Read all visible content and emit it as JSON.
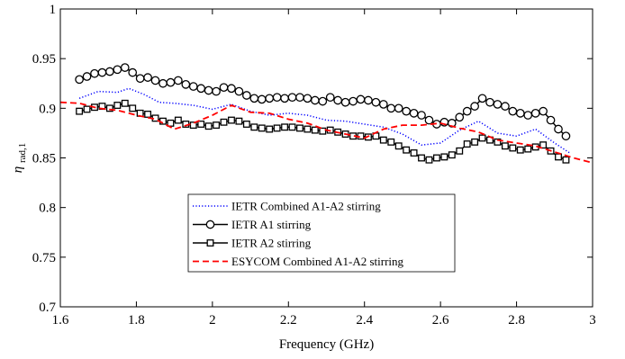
{
  "chart_data": {
    "type": "line",
    "xlabel": "Frequency (GHz)",
    "ylabel_main": "η",
    "ylabel_sub": "rad,1",
    "xlim": [
      1.6,
      3.0
    ],
    "ylim": [
      0.7,
      1.0
    ],
    "xticks": [
      "1.6",
      "1.8",
      "2",
      "2.2",
      "2.4",
      "2.6",
      "2.8",
      "3"
    ],
    "yticks": [
      "0.7",
      "0.75",
      "0.8",
      "0.85",
      "0.9",
      "0.95",
      "1"
    ],
    "grid": false,
    "legend_position": "bottom-center",
    "series": [
      {
        "name": "IETR Combined A1-A2 stirring",
        "color": "#0000ff",
        "style": "dotted",
        "marker": "none",
        "x": [
          1.65,
          1.7,
          1.75,
          1.78,
          1.82,
          1.86,
          1.9,
          1.95,
          2.0,
          2.05,
          2.1,
          2.15,
          2.2,
          2.25,
          2.3,
          2.35,
          2.4,
          2.45,
          2.5,
          2.55,
          2.6,
          2.65,
          2.7,
          2.75,
          2.8,
          2.85,
          2.9,
          2.94
        ],
        "y": [
          0.91,
          0.917,
          0.916,
          0.92,
          0.914,
          0.906,
          0.905,
          0.903,
          0.899,
          0.904,
          0.897,
          0.893,
          0.895,
          0.893,
          0.888,
          0.887,
          0.884,
          0.881,
          0.874,
          0.863,
          0.865,
          0.878,
          0.887,
          0.875,
          0.872,
          0.879,
          0.865,
          0.855
        ]
      },
      {
        "name": "IETR A1 stirring",
        "color": "#000000",
        "style": "solid",
        "marker": "circle",
        "x": [
          1.65,
          1.67,
          1.69,
          1.71,
          1.73,
          1.75,
          1.77,
          1.79,
          1.81,
          1.83,
          1.85,
          1.87,
          1.89,
          1.91,
          1.93,
          1.95,
          1.97,
          1.99,
          2.01,
          2.03,
          2.05,
          2.07,
          2.09,
          2.11,
          2.13,
          2.15,
          2.17,
          2.19,
          2.21,
          2.23,
          2.25,
          2.27,
          2.29,
          2.31,
          2.33,
          2.35,
          2.37,
          2.39,
          2.41,
          2.43,
          2.45,
          2.47,
          2.49,
          2.51,
          2.53,
          2.55,
          2.57,
          2.59,
          2.61,
          2.63,
          2.65,
          2.67,
          2.69,
          2.71,
          2.73,
          2.75,
          2.77,
          2.79,
          2.81,
          2.83,
          2.85,
          2.87,
          2.89,
          2.91,
          2.93
        ],
        "y": [
          0.929,
          0.932,
          0.935,
          0.936,
          0.937,
          0.939,
          0.941,
          0.936,
          0.93,
          0.931,
          0.928,
          0.925,
          0.926,
          0.928,
          0.924,
          0.922,
          0.92,
          0.918,
          0.917,
          0.921,
          0.92,
          0.917,
          0.913,
          0.91,
          0.909,
          0.91,
          0.911,
          0.91,
          0.911,
          0.911,
          0.91,
          0.908,
          0.907,
          0.911,
          0.908,
          0.906,
          0.907,
          0.909,
          0.908,
          0.906,
          0.904,
          0.9,
          0.9,
          0.897,
          0.895,
          0.893,
          0.888,
          0.884,
          0.886,
          0.885,
          0.891,
          0.897,
          0.902,
          0.91,
          0.906,
          0.904,
          0.902,
          0.897,
          0.895,
          0.893,
          0.895,
          0.897,
          0.888,
          0.879,
          0.872
        ]
      },
      {
        "name": "IETR A2 stirring",
        "color": "#000000",
        "style": "solid",
        "marker": "square",
        "x": [
          1.65,
          1.67,
          1.69,
          1.71,
          1.73,
          1.75,
          1.77,
          1.79,
          1.81,
          1.83,
          1.85,
          1.87,
          1.89,
          1.91,
          1.93,
          1.95,
          1.97,
          1.99,
          2.01,
          2.03,
          2.05,
          2.07,
          2.09,
          2.11,
          2.13,
          2.15,
          2.17,
          2.19,
          2.21,
          2.23,
          2.25,
          2.27,
          2.29,
          2.31,
          2.33,
          2.35,
          2.37,
          2.39,
          2.41,
          2.43,
          2.45,
          2.47,
          2.49,
          2.51,
          2.53,
          2.55,
          2.57,
          2.59,
          2.61,
          2.63,
          2.65,
          2.67,
          2.69,
          2.71,
          2.73,
          2.75,
          2.77,
          2.79,
          2.81,
          2.83,
          2.85,
          2.87,
          2.89,
          2.91,
          2.93
        ],
        "y": [
          0.897,
          0.899,
          0.901,
          0.902,
          0.9,
          0.903,
          0.905,
          0.9,
          0.895,
          0.894,
          0.89,
          0.887,
          0.885,
          0.888,
          0.884,
          0.883,
          0.884,
          0.882,
          0.883,
          0.886,
          0.888,
          0.887,
          0.884,
          0.881,
          0.88,
          0.879,
          0.88,
          0.881,
          0.881,
          0.88,
          0.879,
          0.878,
          0.877,
          0.878,
          0.876,
          0.874,
          0.872,
          0.872,
          0.871,
          0.872,
          0.868,
          0.866,
          0.862,
          0.858,
          0.855,
          0.85,
          0.848,
          0.85,
          0.851,
          0.853,
          0.857,
          0.864,
          0.866,
          0.87,
          0.868,
          0.866,
          0.862,
          0.86,
          0.858,
          0.859,
          0.861,
          0.863,
          0.857,
          0.851,
          0.848
        ]
      },
      {
        "name": "ESYCOM Combined A1-A2 stirring",
        "color": "#ff0000",
        "style": "dashed",
        "marker": "none",
        "x": [
          1.6,
          1.65,
          1.7,
          1.75,
          1.8,
          1.85,
          1.9,
          1.95,
          2.0,
          2.05,
          2.1,
          2.15,
          2.2,
          2.25,
          2.3,
          2.35,
          2.4,
          2.45,
          2.5,
          2.55,
          2.6,
          2.65,
          2.7,
          2.75,
          2.8,
          2.85,
          2.9,
          2.95,
          3.0
        ],
        "y": [
          0.906,
          0.905,
          0.9,
          0.898,
          0.893,
          0.889,
          0.879,
          0.885,
          0.893,
          0.903,
          0.896,
          0.895,
          0.889,
          0.885,
          0.878,
          0.874,
          0.87,
          0.879,
          0.883,
          0.883,
          0.885,
          0.88,
          0.876,
          0.868,
          0.865,
          0.862,
          0.856,
          0.85,
          0.845
        ]
      }
    ]
  }
}
